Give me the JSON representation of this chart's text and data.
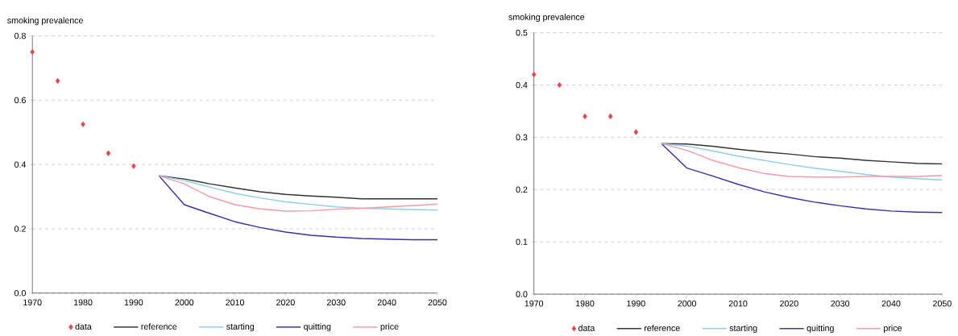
{
  "chart_data": [
    {
      "type": "line",
      "ylabel": "smoking prevalence",
      "xlim": [
        1970,
        2050
      ],
      "ylim": [
        0,
        0.8
      ],
      "xticks": [
        1970,
        1980,
        1990,
        2000,
        2010,
        2020,
        2030,
        2040,
        2050
      ],
      "yticks": [
        {
          "value": 0,
          "label": "0.0"
        },
        0.2,
        0.4,
        0.6,
        0.8
      ],
      "grid": "y",
      "legend": "bottom",
      "series": [
        {
          "name": "data",
          "type": "scatter",
          "marker": "diamond",
          "color": "#e8424a",
          "x": [
            1970,
            1975,
            1980,
            1985,
            1990
          ],
          "values": [
            0.75,
            0.66,
            0.525,
            0.435,
            0.395
          ]
        },
        {
          "name": "reference",
          "color": "#333333",
          "x": [
            1995,
            2000,
            2005,
            2010,
            2015,
            2020,
            2025,
            2030,
            2035,
            2040,
            2045,
            2050
          ],
          "values": [
            0.365,
            0.355,
            0.34,
            0.327,
            0.315,
            0.307,
            0.302,
            0.298,
            0.293,
            0.293,
            0.293,
            0.293
          ]
        },
        {
          "name": "starting",
          "color": "#8ecdf0",
          "x": [
            1995,
            2000,
            2005,
            2010,
            2015,
            2020,
            2025,
            2030,
            2035,
            2040,
            2045,
            2050
          ],
          "values": [
            0.365,
            0.35,
            0.33,
            0.31,
            0.296,
            0.284,
            0.276,
            0.268,
            0.264,
            0.262,
            0.26,
            0.258
          ]
        },
        {
          "name": "quitting",
          "color": "#3a2fa8",
          "x": [
            1995,
            2000,
            2005,
            2010,
            2015,
            2020,
            2025,
            2030,
            2035,
            2040,
            2045,
            2050
          ],
          "values": [
            0.365,
            0.275,
            0.248,
            0.222,
            0.204,
            0.19,
            0.18,
            0.174,
            0.17,
            0.168,
            0.166,
            0.166
          ]
        },
        {
          "name": "price",
          "color": "#f49aa8",
          "x": [
            1995,
            2000,
            2005,
            2010,
            2015,
            2020,
            2025,
            2030,
            2035,
            2040,
            2045,
            2050
          ],
          "values": [
            0.365,
            0.34,
            0.3,
            0.275,
            0.262,
            0.255,
            0.256,
            0.261,
            0.264,
            0.268,
            0.272,
            0.277
          ]
        }
      ]
    },
    {
      "type": "line",
      "ylabel": "smoking prevalence",
      "xlim": [
        1970,
        2050
      ],
      "ylim": [
        0,
        0.5
      ],
      "xticks": [
        1970,
        1980,
        1990,
        2000,
        2010,
        2020,
        2030,
        2040,
        2050
      ],
      "yticks": [
        {
          "value": 0,
          "label": "0.0"
        },
        0.1,
        0.2,
        0.3,
        0.4,
        0.5
      ],
      "grid": "y",
      "legend": "bottom",
      "series": [
        {
          "name": "data",
          "type": "scatter",
          "marker": "diamond",
          "color": "#e8424a",
          "x": [
            1970,
            1975,
            1980,
            1985,
            1990
          ],
          "values": [
            0.42,
            0.4,
            0.34,
            0.34,
            0.31
          ]
        },
        {
          "name": "reference",
          "color": "#333333",
          "x": [
            1995,
            2000,
            2005,
            2010,
            2015,
            2020,
            2025,
            2030,
            2035,
            2040,
            2045,
            2050
          ],
          "values": [
            0.288,
            0.287,
            0.283,
            0.277,
            0.272,
            0.268,
            0.263,
            0.26,
            0.256,
            0.253,
            0.25,
            0.249
          ]
        },
        {
          "name": "starting",
          "color": "#8ecdf0",
          "x": [
            1995,
            2000,
            2005,
            2010,
            2015,
            2020,
            2025,
            2030,
            2035,
            2040,
            2045,
            2050
          ],
          "values": [
            0.288,
            0.283,
            0.274,
            0.264,
            0.256,
            0.248,
            0.241,
            0.235,
            0.229,
            0.224,
            0.221,
            0.218
          ]
        },
        {
          "name": "quitting",
          "color": "#3a2fa8",
          "x": [
            1995,
            2000,
            2005,
            2010,
            2015,
            2020,
            2025,
            2030,
            2035,
            2040,
            2045,
            2050
          ],
          "values": [
            0.288,
            0.241,
            0.226,
            0.21,
            0.196,
            0.185,
            0.176,
            0.169,
            0.163,
            0.159,
            0.157,
            0.156
          ]
        },
        {
          "name": "price",
          "color": "#f49aa8",
          "x": [
            1995,
            2000,
            2005,
            2010,
            2015,
            2020,
            2025,
            2030,
            2035,
            2040,
            2045,
            2050
          ],
          "values": [
            0.288,
            0.275,
            0.256,
            0.242,
            0.231,
            0.225,
            0.224,
            0.224,
            0.225,
            0.225,
            0.225,
            0.227
          ]
        }
      ]
    }
  ]
}
